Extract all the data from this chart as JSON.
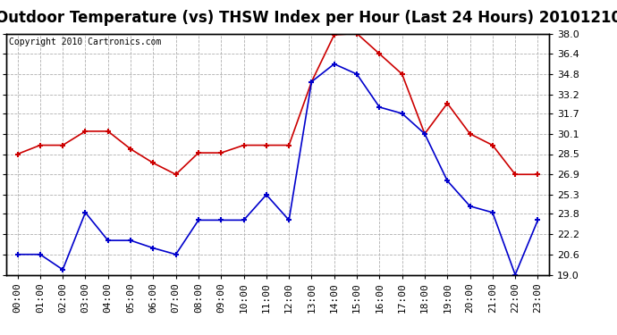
{
  "title": "Outdoor Temperature (vs) THSW Index per Hour (Last 24 Hours) 20101210",
  "copyright": "Copyright 2010 Cartronics.com",
  "hours": [
    "00:00",
    "01:00",
    "02:00",
    "03:00",
    "04:00",
    "05:00",
    "06:00",
    "07:00",
    "08:00",
    "09:00",
    "10:00",
    "11:00",
    "12:00",
    "13:00",
    "14:00",
    "15:00",
    "16:00",
    "17:00",
    "18:00",
    "19:00",
    "20:00",
    "21:00",
    "22:00",
    "23:00"
  ],
  "temp_blue": [
    20.6,
    20.6,
    19.4,
    23.9,
    21.7,
    21.7,
    21.1,
    20.6,
    23.3,
    23.3,
    23.3,
    25.3,
    23.3,
    34.2,
    35.6,
    34.8,
    32.2,
    31.7,
    30.1,
    26.4,
    24.4,
    23.9,
    19.0,
    23.3
  ],
  "thsw_red": [
    28.5,
    29.2,
    29.2,
    30.3,
    30.3,
    28.9,
    27.8,
    26.9,
    28.6,
    28.6,
    29.2,
    29.2,
    29.2,
    34.2,
    37.9,
    38.0,
    36.4,
    34.8,
    30.1,
    32.5,
    30.1,
    29.2,
    26.9,
    26.9
  ],
  "ylim_min": 19.0,
  "ylim_max": 38.0,
  "yticks": [
    19.0,
    20.6,
    22.2,
    23.8,
    25.3,
    26.9,
    28.5,
    30.1,
    31.7,
    33.2,
    34.8,
    36.4,
    38.0
  ],
  "bg_color": "#ffffff",
  "grid_color": "#b0b0b0",
  "blue_color": "#0000cc",
  "red_color": "#cc0000",
  "title_fontsize": 12,
  "copyright_fontsize": 7,
  "tick_fontsize": 8
}
